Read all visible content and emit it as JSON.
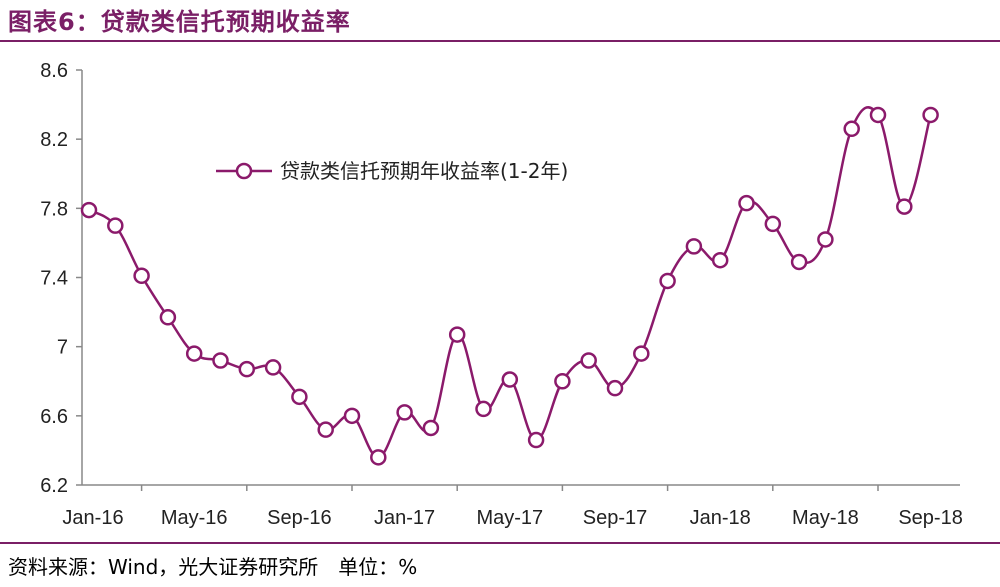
{
  "header": {
    "title": "图表6：贷款类信托预期收益率"
  },
  "footer": {
    "source": "资料来源：Wind，光大证券研究所　单位：%"
  },
  "colors": {
    "accent": "#7a1f66",
    "series": "#8b1a6b"
  },
  "chart_data": {
    "type": "line",
    "title": "",
    "xlabel": "",
    "ylabel": "",
    "ylim": [
      6.2,
      8.6
    ],
    "yticks": [
      "8.6",
      "8.2",
      "7.8",
      "7.4",
      "7",
      "6.6",
      "6.2"
    ],
    "xticks": [
      "Jan-16",
      "May-16",
      "Sep-16",
      "Jan-17",
      "May-17",
      "Sep-17",
      "Jan-18",
      "May-18",
      "Sep-18"
    ],
    "grid": false,
    "legend": "top-left",
    "series": [
      {
        "name": "贷款类信托预期年收益率(1-2年)",
        "marker": "hollow-circle",
        "values": [
          7.79,
          7.7,
          7.41,
          7.17,
          6.96,
          6.92,
          6.87,
          6.88,
          6.71,
          6.52,
          6.6,
          6.36,
          6.62,
          6.53,
          7.07,
          6.64,
          6.81,
          6.46,
          6.8,
          6.92,
          6.76,
          6.96,
          7.38,
          7.58,
          7.5,
          7.83,
          7.71,
          7.49,
          7.62,
          8.26,
          8.34,
          7.81,
          8.34
        ]
      }
    ]
  }
}
